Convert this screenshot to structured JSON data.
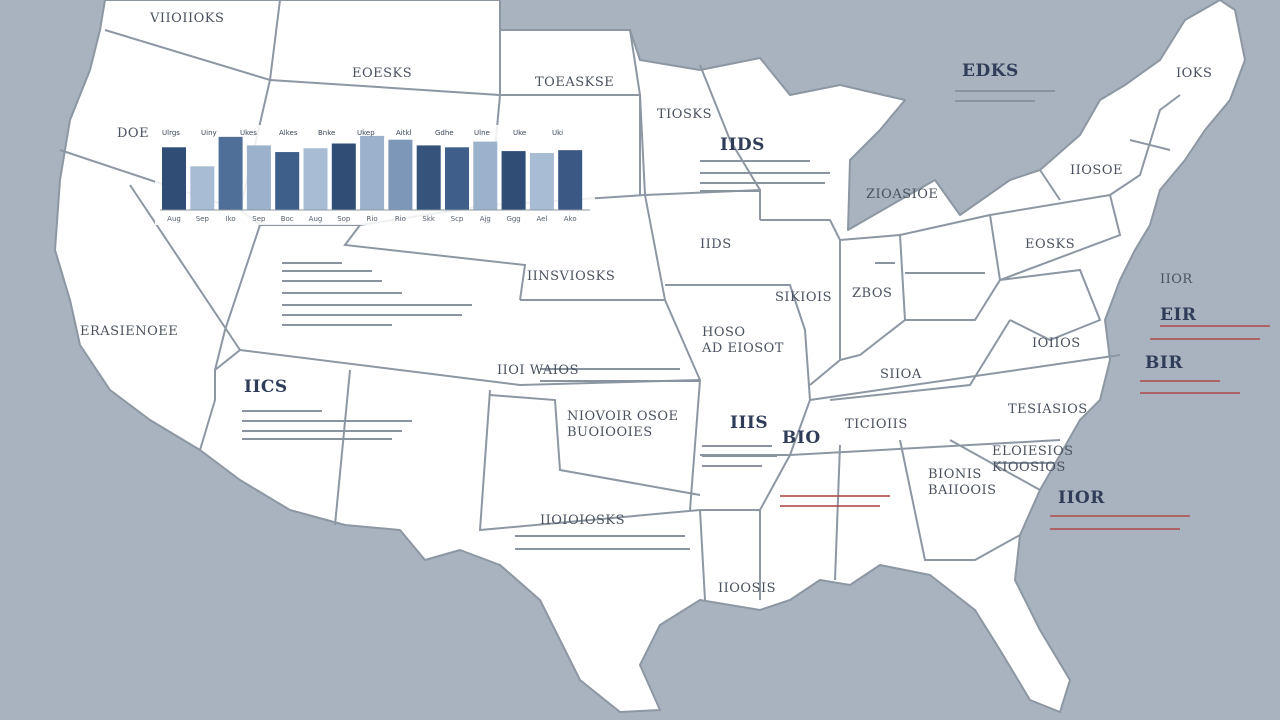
{
  "map": {
    "background_color": "#a9b3bf",
    "land_color": "#ffffff",
    "border_color": "#8d97a3",
    "labels": [
      {
        "id": "label-washington",
        "text": "VIIOIIOKS"
      },
      {
        "id": "label-montana",
        "text": "EOESKS"
      },
      {
        "id": "label-north-dakota",
        "text": "TOEASKSE"
      },
      {
        "id": "label-oregon",
        "text": "DOE"
      },
      {
        "id": "label-minnesota",
        "text": "TIOSKS"
      },
      {
        "id": "label-wisconsin",
        "text": "IIDS"
      },
      {
        "id": "label-maine",
        "text": "EDKS"
      },
      {
        "id": "label-maine-right",
        "text": "IOKS"
      },
      {
        "id": "label-new-york",
        "text": "IIOSOE"
      },
      {
        "id": "label-michigan",
        "text": "ZIOASIOE"
      },
      {
        "id": "label-iowa",
        "text": "IIDS"
      },
      {
        "id": "label-pennsylvania",
        "text": "EOSKS"
      },
      {
        "id": "label-nebraska",
        "text": "IINSVIOSKS"
      },
      {
        "id": "label-california",
        "text": "ERASIENOEE"
      },
      {
        "id": "label-illinois",
        "text": "SIKIOIS"
      },
      {
        "id": "label-indiana",
        "text": "ZBOS"
      },
      {
        "id": "label-missouri",
        "text": "HOSO\nAD EIOSOT"
      },
      {
        "id": "label-kansas",
        "text": "IIOI WAIOS"
      },
      {
        "id": "label-virginia",
        "text": "IOIIOS"
      },
      {
        "id": "label-arizona",
        "text": "IICS"
      },
      {
        "id": "label-kentucky",
        "text": "SIIOA"
      },
      {
        "id": "label-oklahoma",
        "text": "NIOVOIR OSOE\nBUOIOOIES"
      },
      {
        "id": "label-arkansas",
        "text": "IIIS"
      },
      {
        "id": "label-tennessee",
        "text": "TICIOIIS"
      },
      {
        "id": "label-tennessee-left",
        "text": "BIO"
      },
      {
        "id": "label-north-carolina",
        "text": "TESIASIOS"
      },
      {
        "id": "label-georgia",
        "text": "BIONIS\nBAIIOOIS"
      },
      {
        "id": "label-south-carolina",
        "text": "ELOIESIOS\nKIOOSIOS"
      },
      {
        "id": "label-texas",
        "text": "IIOIOIOSKS"
      },
      {
        "id": "label-louisiana",
        "text": "IIOOSIS"
      },
      {
        "id": "label-atlantic-1",
        "text": "IIOR"
      },
      {
        "id": "label-atlantic-2",
        "text": "EIR"
      },
      {
        "id": "label-atlantic-3",
        "text": "BIR"
      },
      {
        "id": "label-atlantic-4",
        "text": "IIOR"
      }
    ]
  },
  "chart_data": {
    "type": "bar",
    "categories": [
      "",
      "",
      "",
      "",
      "",
      "",
      "",
      "",
      "",
      "",
      "",
      "",
      "",
      "",
      ""
    ],
    "tick_labels": [
      "Aug",
      "Sep",
      "Iko",
      "Sep",
      "Boc",
      "Aug",
      "Sop",
      "Rio",
      "Rio",
      "Skk",
      "Scp",
      "Ajg",
      "Ggg",
      "Ael",
      "Ako"
    ],
    "legend_labels": [
      "Ulrgs",
      "Uiny",
      "Ukes",
      "Alkes",
      "Bnke",
      "Ukep",
      "Aitkl",
      "Gdhe",
      "Ulne",
      "Uke",
      "Uki"
    ],
    "values": [
      66,
      46,
      77,
      68,
      61,
      65,
      70,
      78,
      74,
      68,
      66,
      72,
      62,
      60,
      63
    ],
    "ylim": [
      0,
      100
    ],
    "colors": [
      "#2f4d75",
      "#a8bcd4",
      "#4f6f98",
      "#9bb1cc",
      "#3e5f8a",
      "#a8bcd4",
      "#2f4d75",
      "#9bb1cc",
      "#7d97b8",
      "#36537c",
      "#3f5f8a",
      "#9bb1cc",
      "#2f4d75",
      "#a8bcd4",
      "#3a5883"
    ]
  }
}
